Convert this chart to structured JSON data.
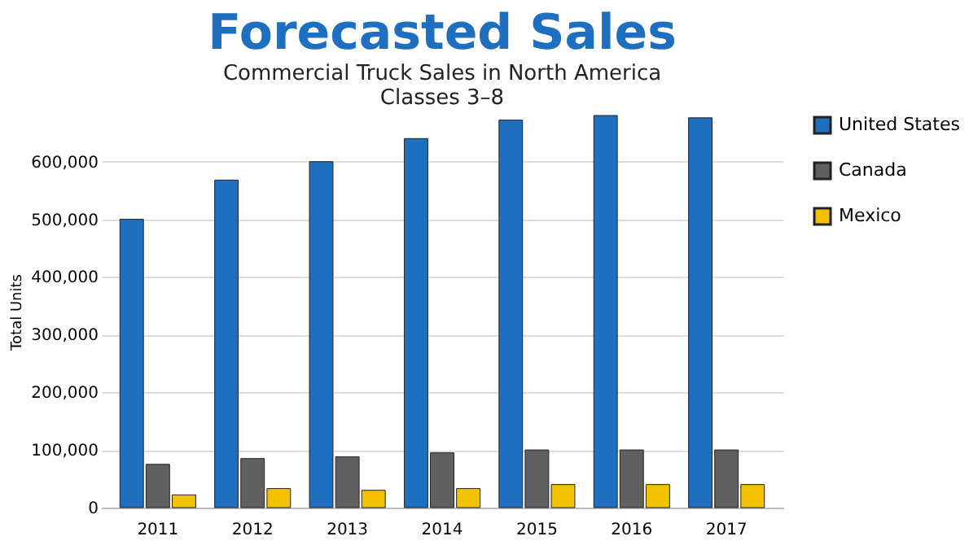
{
  "chart_data": {
    "type": "bar",
    "title": "Forecasted Sales",
    "subtitle": "Commercial Truck Sales in North America\nClasses 3–8",
    "ylabel": "Total Units",
    "categories": [
      "2011",
      "2012",
      "2013",
      "2014",
      "2015",
      "2016",
      "2017"
    ],
    "series": [
      {
        "name": "United States",
        "color": "#1f6fc0",
        "values": [
          500000,
          568000,
          600000,
          640000,
          672000,
          680000,
          676000
        ]
      },
      {
        "name": "Canada",
        "color": "#606060",
        "values": [
          75000,
          85000,
          88000,
          95000,
          100000,
          100000,
          100000
        ]
      },
      {
        "name": "Mexico",
        "color": "#f2c200",
        "values": [
          22000,
          33000,
          30000,
          33000,
          40000,
          40000,
          40000
        ]
      }
    ],
    "ylim": [
      0,
      680000
    ],
    "yticks": [
      0,
      {
        "value": 100000,
        "label": "100,000"
      },
      {
        "value": 200000,
        "label": "200,000"
      },
      {
        "value": 300000,
        "label": "300,000"
      },
      {
        "value": 400000,
        "label": "400,000"
      },
      {
        "value": 500000,
        "label": "500,000"
      },
      {
        "value": 600000,
        "label": "600,000"
      }
    ],
    "grid": "y",
    "legend": "right"
  }
}
